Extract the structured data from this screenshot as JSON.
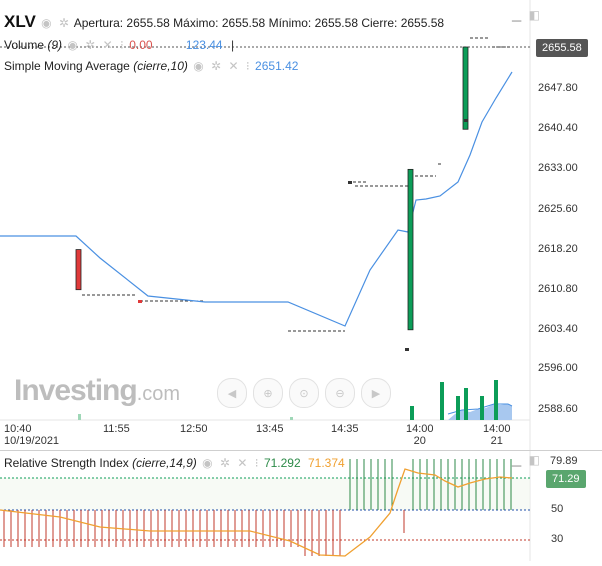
{
  "header": {
    "symbol": "XLV",
    "open_label": "Apertura:",
    "open": "2655.58",
    "high_label": "Máximo:",
    "high": "2655.58",
    "low_label": "Mínimo:",
    "low": "2655.58",
    "close_label": "Cierre:",
    "close": "2655.58"
  },
  "volume": {
    "label": "Volume",
    "param": "(9)",
    "val1": "0.00",
    "val2": "123.44"
  },
  "sma": {
    "label": "Simple Moving Average",
    "param": "(cierre,10)",
    "value": "2651.42"
  },
  "price_axis": {
    "current": "2655.58",
    "ticks": [
      "2647.80",
      "2640.40",
      "2633.00",
      "2625.60",
      "2618.20",
      "2610.80",
      "2603.40",
      "2596.00",
      "2588.60"
    ]
  },
  "time_axis": [
    {
      "top": "10:40",
      "bottom": "10/19/2021"
    },
    {
      "top": "11:55",
      "bottom": ""
    },
    {
      "top": "12:50",
      "bottom": ""
    },
    {
      "top": "13:45",
      "bottom": ""
    },
    {
      "top": "14:35",
      "bottom": ""
    },
    {
      "top": "14:00",
      "bottom": "20"
    },
    {
      "top": "14:00",
      "bottom": "21"
    }
  ],
  "watermark": {
    "text": "Investing",
    "suffix": ".com"
  },
  "toolbar": {
    "buttons": [
      "scroll-left",
      "zoom-in",
      "zoom-reset",
      "zoom-out",
      "scroll-right"
    ]
  },
  "rsi": {
    "label": "Relative Strength Index",
    "param": "(cierre,14,9)",
    "value": "71.292",
    "signal": "71.374",
    "axis": [
      "79.89",
      "50",
      "30"
    ],
    "current": "71.29"
  },
  "colors": {
    "up": "#0c9d58",
    "down": "#e03a3a",
    "sma": "#4a90e2",
    "rsi_up": "#2c8a48",
    "rsi_down": "#c0392b",
    "rsi_signal": "#f0a030"
  },
  "chart_data": {
    "type": "candlestick",
    "candles": [
      {
        "open": 2618.2,
        "close": 2610.8,
        "high": 2618.2,
        "low": 2610.8
      },
      {
        "open": 2603.4,
        "close": 2633.0,
        "high": 2633.0,
        "low": 2603.4
      },
      {
        "open": 2640.4,
        "close": 2655.58,
        "high": 2655.58,
        "low": 2640.4
      }
    ],
    "sma_series": [
      2618.2,
      2618.2,
      2610.8,
      2609.5,
      2609.5,
      2604.0,
      2620.2,
      2626.0,
      2628.5,
      2640.0,
      2650.5
    ]
  }
}
